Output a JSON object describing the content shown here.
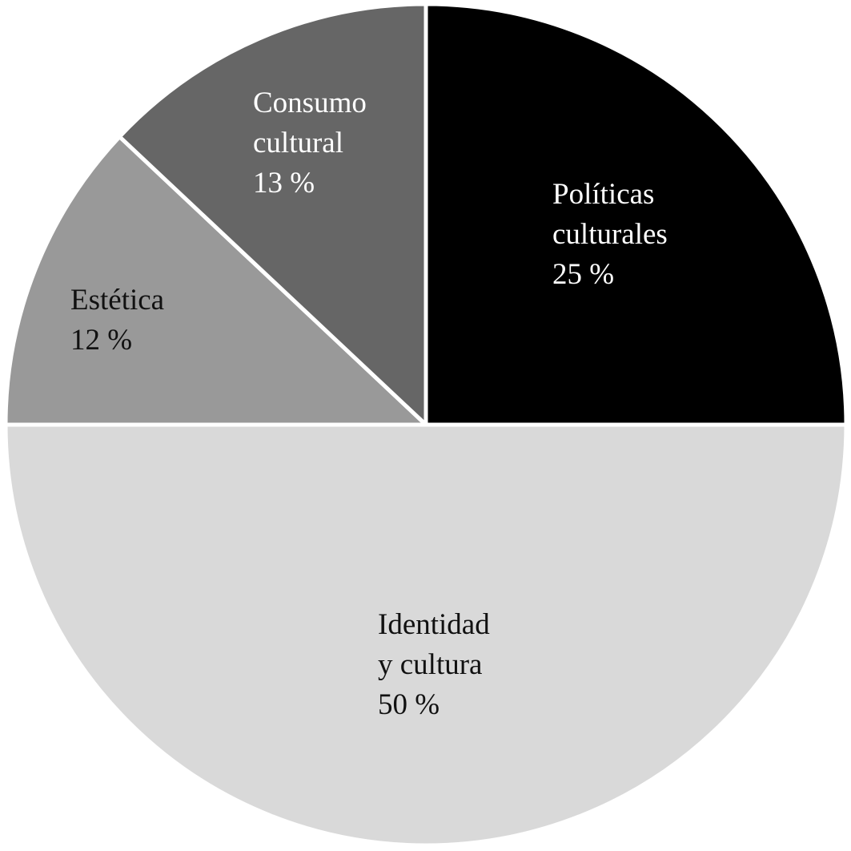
{
  "chart_data": {
    "type": "pie",
    "categories": [
      "Políticas culturales",
      "Identidad y cultura",
      "Estética",
      "Consumo cultural"
    ],
    "values": [
      25,
      50,
      12,
      13
    ],
    "value_labels": [
      "25 %",
      "50 %",
      "12 %",
      "13 %"
    ],
    "colors": [
      "#000000",
      "#d9d9d9",
      "#999999",
      "#666666"
    ],
    "label_colors": [
      "#ffffff",
      "#111111",
      "#111111",
      "#ffffff"
    ]
  }
}
